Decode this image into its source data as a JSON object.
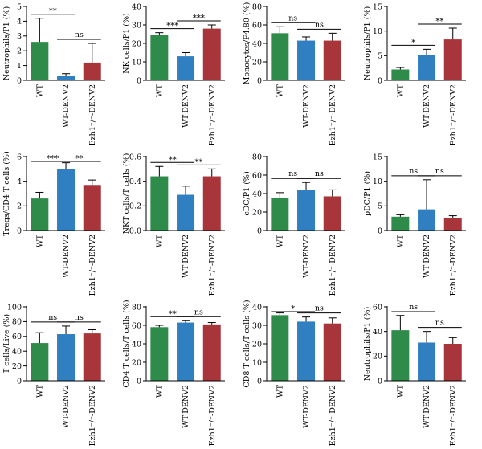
{
  "colors": {
    "WT": "#2e8b4a",
    "WT-DENV2": "#2f7fc1",
    "Ezh1-/--DENV2": "#a8353a"
  },
  "chart_data": [
    {
      "type": "bar",
      "ylabel": "Neutrophils/P1 (%)",
      "ylim": [
        0,
        5
      ],
      "yticks": [
        "0",
        "1",
        "2",
        "3",
        "4",
        "5"
      ],
      "categories": [
        "WT",
        "WT-DENV2",
        "Ezh1⁻/⁻-DENV2"
      ],
      "values": [
        2.6,
        0.3,
        1.2
      ],
      "errors": [
        1.6,
        0.15,
        1.3
      ],
      "significance": [
        {
          "from": 0,
          "to": 1,
          "label": "**"
        },
        {
          "from": 1,
          "to": 2,
          "label": "ns"
        }
      ]
    },
    {
      "type": "bar",
      "ylabel": "NK cells/P1 (%)",
      "ylim": [
        0,
        40
      ],
      "yticks": [
        "0",
        "10",
        "20",
        "30",
        "40"
      ],
      "categories": [
        "WT",
        "WT-DENV2",
        "Ezh1⁻/⁻-DENV2"
      ],
      "values": [
        24.5,
        13,
        28
      ],
      "errors": [
        1.3,
        2,
        2
      ],
      "significance": [
        {
          "from": 0,
          "to": 1,
          "label": "***"
        },
        {
          "from": 1,
          "to": 2,
          "label": "***"
        }
      ]
    },
    {
      "type": "bar",
      "ylabel": "Monocytes/F4.80 (%)",
      "ylim": [
        0,
        80
      ],
      "yticks": [
        "0",
        "20",
        "40",
        "60",
        "80"
      ],
      "categories": [
        "WT",
        "WT-DENV2",
        "Ezh1⁻/⁻-DENV2"
      ],
      "values": [
        51,
        43,
        43
      ],
      "errors": [
        7,
        4,
        8
      ],
      "significance": [
        {
          "from": 0,
          "to": 1,
          "label": "ns"
        },
        {
          "from": 1,
          "to": 2,
          "label": "ns"
        }
      ]
    },
    {
      "type": "bar",
      "ylabel": "Neutrophils/P1 (%)",
      "ylim": [
        0,
        15
      ],
      "yticks": [
        "0",
        "5",
        "10",
        "15"
      ],
      "categories": [
        "WT",
        "WT-DENV2",
        "Ezh1⁻/⁻-DENV2"
      ],
      "values": [
        2.2,
        5.2,
        8.3
      ],
      "errors": [
        0.4,
        1.1,
        2.3
      ],
      "significance": [
        {
          "from": 0,
          "to": 1,
          "label": "*"
        },
        {
          "from": 1,
          "to": 2,
          "label": "**"
        }
      ]
    },
    {
      "type": "bar",
      "ylabel": "Tregs/CD4 T cells (%)",
      "ylim": [
        0,
        6
      ],
      "yticks": [
        "0",
        "2",
        "4",
        "6"
      ],
      "categories": [
        "WT",
        "WT-DENV2",
        "Ezh1⁻/⁻-DENV2"
      ],
      "values": [
        2.6,
        5.0,
        3.7
      ],
      "errors": [
        0.5,
        0.5,
        0.4
      ],
      "significance": [
        {
          "from": 0,
          "to": 1,
          "label": "***"
        },
        {
          "from": 1,
          "to": 2,
          "label": "**"
        }
      ]
    },
    {
      "type": "bar",
      "ylabel": "NKT cells/T cells (%)",
      "ylim": [
        0,
        0.6
      ],
      "yticks": [
        "0.0",
        "0.2",
        "0.4",
        "0.6"
      ],
      "categories": [
        "WT",
        "WT-DENV2",
        "Ezh1⁻/⁻-DENV2"
      ],
      "values": [
        0.44,
        0.29,
        0.44
      ],
      "errors": [
        0.08,
        0.07,
        0.06
      ],
      "significance": [
        {
          "from": 0,
          "to": 1,
          "label": "**"
        },
        {
          "from": 1,
          "to": 2,
          "label": "**"
        }
      ]
    },
    {
      "type": "bar",
      "ylabel": "cDC/P1 (%)",
      "ylim": [
        0,
        80
      ],
      "yticks": [
        "0",
        "20",
        "40",
        "60",
        "80"
      ],
      "categories": [
        "WT",
        "WT-DENV2",
        "Ezh1⁻/⁻-DENV2"
      ],
      "values": [
        35,
        44,
        37
      ],
      "errors": [
        6,
        8,
        7
      ],
      "significance": [
        {
          "from": 0,
          "to": 1,
          "label": "ns"
        },
        {
          "from": 1,
          "to": 2,
          "label": "ns"
        }
      ]
    },
    {
      "type": "bar",
      "ylabel": "pDC/P1 (%)",
      "ylim": [
        0,
        15
      ],
      "yticks": [
        "0",
        "5",
        "10",
        "15"
      ],
      "categories": [
        "WT",
        "WT-DENV2",
        "Ezh1⁻/⁻-DENV2"
      ],
      "values": [
        2.8,
        4.3,
        2.5
      ],
      "errors": [
        0.4,
        6,
        0.5
      ],
      "significance": [
        {
          "from": 0,
          "to": 1,
          "label": "ns"
        },
        {
          "from": 1,
          "to": 2,
          "label": "ns"
        }
      ]
    },
    {
      "type": "bar",
      "ylabel": "T cells/Live (%)",
      "ylim": [
        0,
        100
      ],
      "yticks": [
        "0",
        "20",
        "40",
        "60",
        "80",
        "100"
      ],
      "categories": [
        "WT",
        "WT-DENV2",
        "Ezh1⁻/⁻-DENV2"
      ],
      "values": [
        51,
        63,
        64
      ],
      "errors": [
        14,
        11,
        5
      ],
      "significance": [
        {
          "from": 0,
          "to": 1,
          "label": "ns"
        },
        {
          "from": 1,
          "to": 2,
          "label": "ns"
        }
      ]
    },
    {
      "type": "bar",
      "ylabel": "CD4 T cells/T cells (%)",
      "ylim": [
        0,
        80
      ],
      "yticks": [
        "0",
        "20",
        "40",
        "60",
        "80"
      ],
      "categories": [
        "WT",
        "WT-DENV2",
        "Ezh1⁻/⁻-DENV2"
      ],
      "values": [
        58,
        63,
        61
      ],
      "errors": [
        2,
        2,
        2
      ],
      "significance": [
        {
          "from": 0,
          "to": 1,
          "label": "**"
        },
        {
          "from": 1,
          "to": 2,
          "label": "ns"
        }
      ]
    },
    {
      "type": "bar",
      "ylabel": "CD8 T cells/T cells (%)",
      "ylim": [
        0,
        40
      ],
      "yticks": [
        "0",
        "10",
        "20",
        "30",
        "40"
      ],
      "categories": [
        "WT",
        "WT-DENV2",
        "Ezh1⁻/⁻-DENV2"
      ],
      "values": [
        35.5,
        32,
        31
      ],
      "errors": [
        1.2,
        2.5,
        3
      ],
      "significance": [
        {
          "from": 0,
          "to": 1,
          "label": "*"
        },
        {
          "from": 1,
          "to": 2,
          "label": "ns"
        }
      ]
    },
    {
      "type": "bar",
      "ylabel": "Neutrophils/P1 (%)",
      "ylim": [
        0,
        60
      ],
      "yticks": [
        "0",
        "20",
        "40",
        "60"
      ],
      "categories": [
        "WT",
        "WT-DENV2",
        "Ezh1⁻/⁻-DENV2"
      ],
      "values": [
        41,
        31,
        30
      ],
      "errors": [
        12,
        9,
        5
      ],
      "significance": [
        {
          "from": 0,
          "to": 1,
          "label": "ns"
        },
        {
          "from": 1,
          "to": 2,
          "label": "ns"
        }
      ]
    }
  ]
}
